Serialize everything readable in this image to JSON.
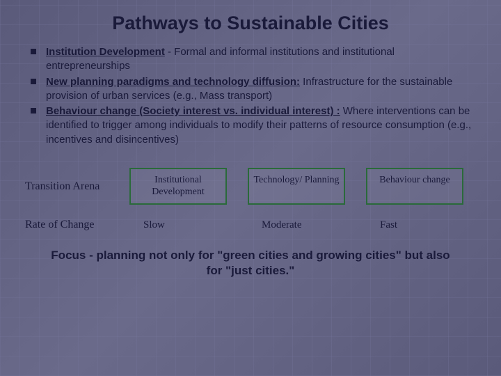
{
  "title": "Pathways to Sustainable Cities",
  "bullets": [
    {
      "lead": "Institution Development",
      "lead_underline": true,
      "body": " - Formal and informal institutions and institutional entrepreneurships"
    },
    {
      "lead": "New planning paradigms and technology diffusion:",
      "lead_underline": true,
      "body": " Infrastructure for the sustainable provision of urban services (e.g., Mass transport)"
    },
    {
      "lead": "Behaviour change (Society interest vs. individual interest) :",
      "lead_underline": true,
      "body": " Where interventions can be identified to trigger among individuals to modify their patterns of resource consumption (e.g., incentives and disincentives)"
    }
  ],
  "table": {
    "row1_label": "Transition Arena",
    "row1_cells": [
      "Institutional Development",
      "Technology/ Planning",
      "Behaviour change"
    ],
    "row2_label": "Rate of Change",
    "row2_cells": [
      "Slow",
      "Moderate",
      "Fast"
    ]
  },
  "footer": "Focus - planning not only for \"green cities and growing cities\" but also for \"just cities.\"",
  "style": {
    "title_fontsize": 27,
    "body_fontsize": 15,
    "box_border_color": "#2a6a3a",
    "text_color": "#1a1a3a",
    "bg_color": "#5f5f82"
  }
}
